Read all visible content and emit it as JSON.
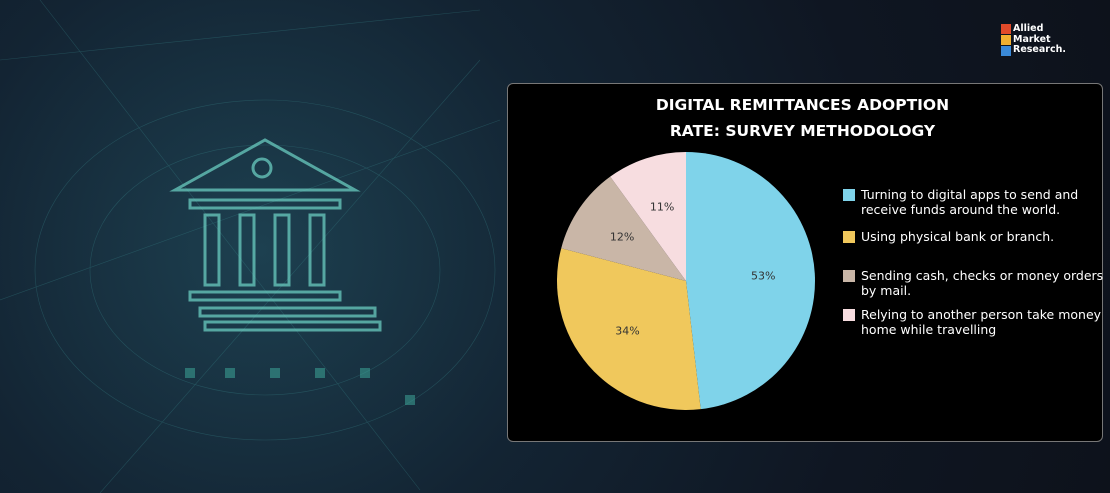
{
  "logo": [
    "Allied",
    "Market",
    "Research."
  ],
  "chart_data": {
    "type": "pie",
    "title": "DIGITAL REMITTANCES ADOPTION RATE: SURVEY METHODOLOGY",
    "categories": [
      "Turning to digital apps to send and receive funds around the world.",
      "Using physical bank or branch.",
      "Sending cash, checks or money orders by mail.",
      "Relying to another person take money home while travelling"
    ],
    "values": [
      53,
      34,
      12,
      11
    ],
    "value_labels": [
      "53%",
      "34%",
      "12%",
      "11%"
    ],
    "colors": [
      "#7fd3ea",
      "#f0c85c",
      "#c9b6a7",
      "#f7dde0"
    ]
  }
}
